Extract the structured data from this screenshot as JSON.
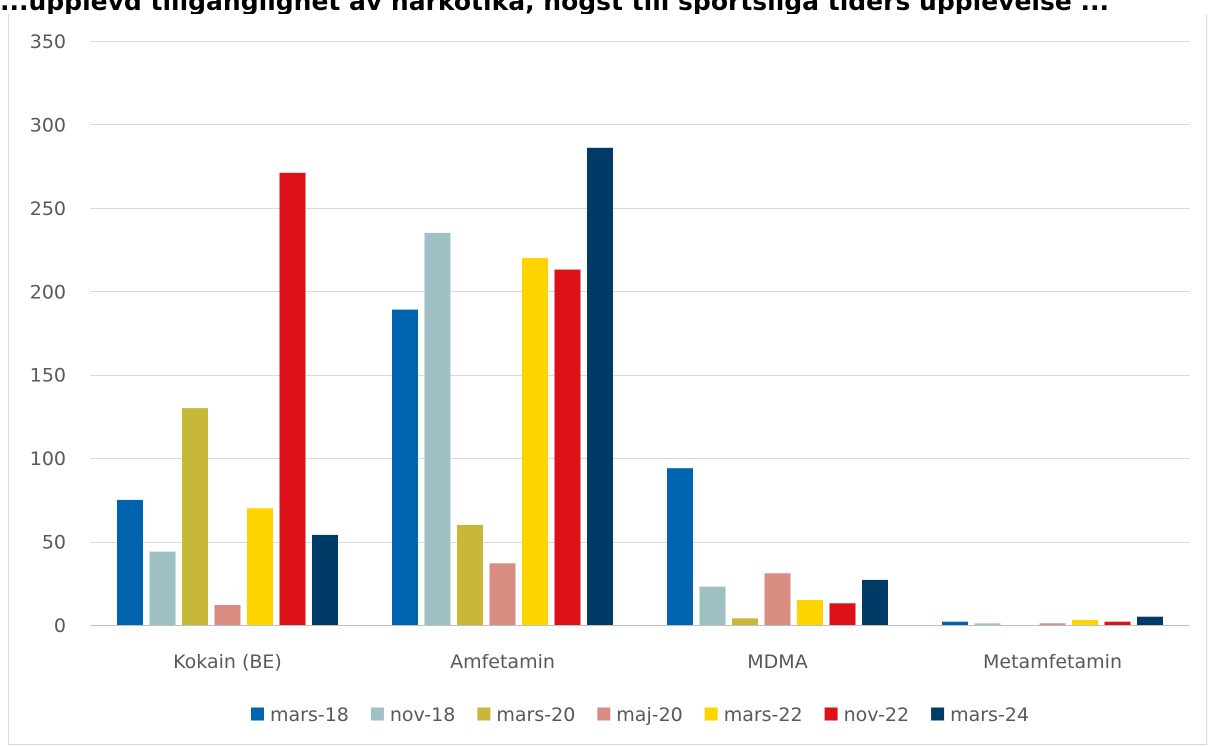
{
  "chart_data": {
    "type": "bar",
    "title": "...upplevd tillgänglighet av narkotika, högst till sportsliga tiders upplevelse ...",
    "xlabel": "",
    "ylabel": "",
    "ylim": [
      0,
      350
    ],
    "yticks": [
      0,
      50,
      100,
      150,
      200,
      250,
      300,
      350
    ],
    "grid": true,
    "legend": "bottom",
    "categories": [
      "Kokain (BE)",
      "Amfetamin",
      "MDMA",
      "Metamfetamin"
    ],
    "series": [
      {
        "name": "mars-18",
        "color": "#0063b0",
        "values": [
          75,
          189,
          94,
          2
        ]
      },
      {
        "name": "nov-18",
        "color": "#9fc1c5",
        "values": [
          44,
          235,
          23,
          1
        ]
      },
      {
        "name": "mars-20",
        "color": "#c8b838",
        "values": [
          130,
          60,
          4,
          0
        ]
      },
      {
        "name": "maj-20",
        "color": "#d98c82",
        "values": [
          12,
          37,
          31,
          1
        ]
      },
      {
        "name": "mars-22",
        "color": "#fed400",
        "values": [
          70,
          220,
          15,
          3
        ]
      },
      {
        "name": "nov-22",
        "color": "#dc1117",
        "values": [
          271,
          213,
          13,
          2
        ]
      },
      {
        "name": "mars-24",
        "color": "#003b68",
        "values": [
          54,
          286,
          27,
          5
        ]
      }
    ]
  }
}
